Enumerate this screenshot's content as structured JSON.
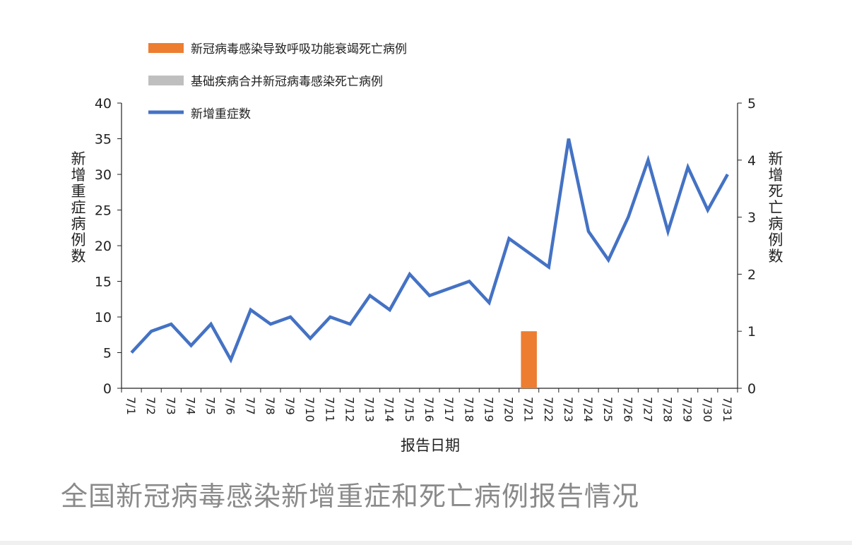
{
  "caption": "全国新冠病毒感染新增重症和死亡病例报告情况",
  "chart_data": {
    "type": "bar+line",
    "x": [
      "7/1",
      "7/2",
      "7/3",
      "7/4",
      "7/5",
      "7/6",
      "7/7",
      "7/8",
      "7/9",
      "7/10",
      "7/11",
      "7/12",
      "7/13",
      "7/14",
      "7/15",
      "7/16",
      "7/17",
      "7/18",
      "7/19",
      "7/20",
      "7/21",
      "7/22",
      "7/23",
      "7/24",
      "7/25",
      "7/26",
      "7/27",
      "7/28",
      "7/29",
      "7/30",
      "7/31"
    ],
    "xlabel": "报告日期",
    "ylabel_left": "新增重症病例数",
    "ylabel_right": "新增死亡病例数",
    "ylim_left": [
      0,
      40
    ],
    "ylim_right": [
      0,
      5
    ],
    "yticks_left": [
      "0",
      "5",
      "10",
      "15",
      "20",
      "25",
      "30",
      "35",
      "40"
    ],
    "yticks_right": [
      "0",
      "1",
      "2",
      "3",
      "4",
      "5"
    ],
    "legend_position": "top-left",
    "series": [
      {
        "name": "新冠病毒感染导致呼吸功能衰竭死亡病例",
        "kind": "bar",
        "axis": "right",
        "color": "#ED7D31",
        "values": [
          0,
          0,
          0,
          0,
          0,
          0,
          0,
          0,
          0,
          0,
          0,
          0,
          0,
          0,
          0,
          0,
          0,
          0,
          0,
          0,
          1,
          0,
          0,
          0,
          0,
          0,
          0,
          0,
          0,
          0,
          0
        ]
      },
      {
        "name": "基础疾病合并新冠病毒感染死亡病例",
        "kind": "bar",
        "axis": "right",
        "color": "#BFBFBF",
        "values": [
          0,
          0,
          0,
          0,
          0,
          0,
          0,
          0,
          0,
          0,
          0,
          0,
          0,
          0,
          0,
          0,
          0,
          0,
          0,
          0,
          0,
          0,
          0,
          0,
          0,
          0,
          0,
          0,
          0,
          0,
          0
        ]
      },
      {
        "name": "新增重症数",
        "kind": "line",
        "axis": "left",
        "color": "#4472C4",
        "values": [
          5,
          8,
          9,
          6,
          9,
          4,
          11,
          9,
          10,
          7,
          10,
          9,
          13,
          11,
          16,
          13,
          14,
          15,
          12,
          21,
          19,
          17,
          35,
          22,
          18,
          24,
          32,
          22,
          31,
          25,
          30
        ]
      }
    ]
  }
}
